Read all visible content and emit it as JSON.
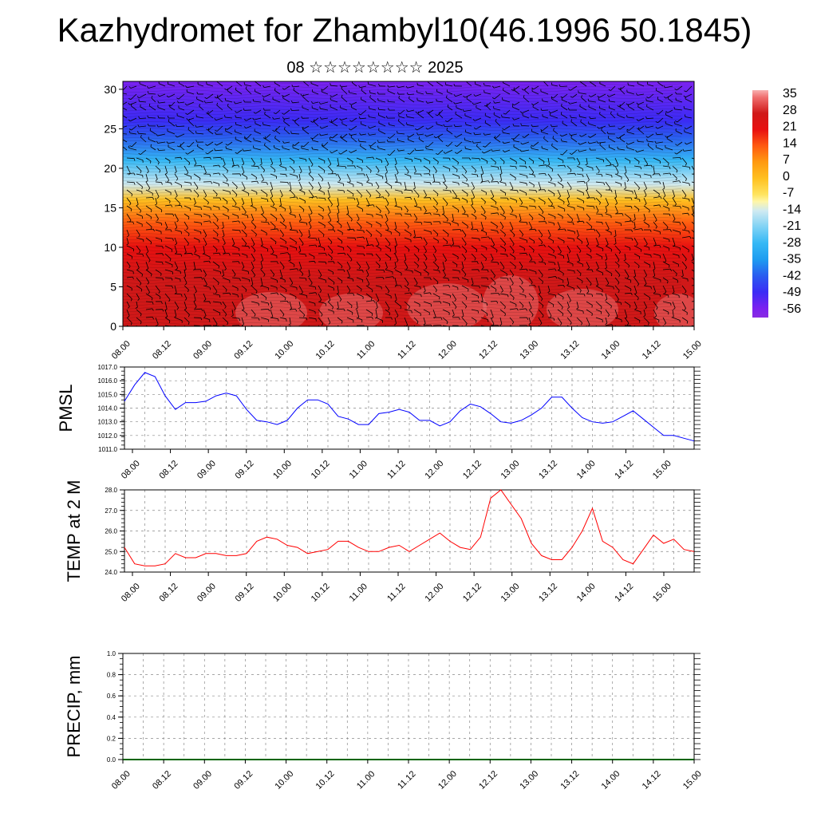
{
  "title": "Kazhydromet for Zhambyl10(46.1996 50.1845)",
  "subtitle": "08 ☆☆☆☆☆☆☆☆ 2025",
  "colors": {
    "pmsl_line": "#0000ff",
    "temp_line": "#ff0000",
    "precip_line": "#006400",
    "grid": "#888888"
  },
  "chart_data": [
    {
      "type": "heatmap",
      "name": "vertical cross-section",
      "x_ticks": [
        "08.00",
        "08.12",
        "09.00",
        "09.12",
        "10.00",
        "10.12",
        "11.00",
        "11.12",
        "12.00",
        "12.12",
        "13.00",
        "13.12",
        "14.00",
        "14.12",
        "15.00"
      ],
      "y_ticks": [
        0,
        5,
        10,
        15,
        20,
        25,
        30
      ],
      "ylim": [
        0,
        31
      ],
      "colorbar_labels": [
        "35",
        "28",
        "21",
        "14",
        "7",
        "0",
        "-7",
        "-14",
        "-21",
        "-28",
        "-35",
        "-42",
        "-49",
        "-56"
      ],
      "colorbar_range": [
        -60,
        38
      ],
      "field_profile": [
        {
          "level": 0,
          "value": 28
        },
        {
          "level": 6,
          "value": 24
        },
        {
          "level": 10,
          "value": 16
        },
        {
          "level": 13,
          "value": 8
        },
        {
          "level": 16,
          "value": -3
        },
        {
          "level": 18,
          "value": -15
        },
        {
          "level": 21,
          "value": -28
        },
        {
          "level": 24,
          "value": -42
        },
        {
          "level": 26,
          "value": -52
        },
        {
          "level": 31,
          "value": -58
        }
      ],
      "overlay": "wind barbs"
    },
    {
      "type": "line",
      "ylabel": "PMSL",
      "ylim": [
        1011.0,
        1017.0
      ],
      "y_ticks": [
        "1011.0",
        "1012.0",
        "1013.0",
        "1014.0",
        "1015.0",
        "1016.0",
        "1017.0"
      ],
      "x_ticks": [
        "08.00",
        "08.12",
        "09.00",
        "09.12",
        "10.00",
        "10.12",
        "11.00",
        "11.12",
        "12.00",
        "12.12",
        "13.00",
        "13.12",
        "14.00",
        "14.12",
        "15.00"
      ],
      "x_hours": [
        0,
        3,
        6,
        9,
        12,
        15,
        18,
        21,
        24,
        27,
        30,
        33,
        36,
        39,
        42,
        45,
        48,
        51,
        54,
        57,
        60,
        63,
        66,
        69,
        72,
        75,
        78,
        81,
        84,
        87,
        90,
        93,
        96,
        99,
        102,
        105,
        108,
        111,
        114,
        117,
        120,
        123,
        126,
        129,
        132,
        135,
        138,
        141,
        144,
        147,
        150,
        153,
        156,
        159,
        162,
        165,
        168
      ],
      "values": [
        1014.5,
        1015.7,
        1016.6,
        1016.3,
        1014.9,
        1013.9,
        1014.4,
        1014.4,
        1014.5,
        1014.9,
        1015.1,
        1014.9,
        1013.9,
        1013.1,
        1013.0,
        1012.8,
        1013.1,
        1014.0,
        1014.6,
        1014.6,
        1014.3,
        1013.4,
        1013.2,
        1012.8,
        1012.8,
        1013.6,
        1013.7,
        1013.9,
        1013.7,
        1013.1,
        1013.1,
        1012.7,
        1013.0,
        1013.8,
        1014.3,
        1014.1,
        1013.6,
        1013.0,
        1012.9,
        1013.1,
        1013.5,
        1014.0,
        1014.8,
        1014.8,
        1014.0,
        1013.3,
        1013.0,
        1012.9,
        1013.0,
        1013.4,
        1013.8,
        1013.2,
        1012.6,
        1012.0,
        1012.0,
        1011.8,
        1011.6
      ]
    },
    {
      "type": "line",
      "ylabel": "TEMP at 2 M",
      "ylim": [
        24.0,
        28.0
      ],
      "y_ticks": [
        "24.0",
        "25.0",
        "26.0",
        "27.0",
        "28.0"
      ],
      "x_ticks": [
        "08.00",
        "08.12",
        "09.00",
        "09.12",
        "10.00",
        "10.12",
        "11.00",
        "11.12",
        "12.00",
        "12.12",
        "13.00",
        "13.12",
        "14.00",
        "14.12",
        "15.00"
      ],
      "x_hours": [
        0,
        3,
        6,
        9,
        12,
        15,
        18,
        21,
        24,
        27,
        30,
        33,
        36,
        39,
        42,
        45,
        48,
        51,
        54,
        57,
        60,
        63,
        66,
        69,
        72,
        75,
        78,
        81,
        84,
        87,
        90,
        93,
        96,
        99,
        102,
        105,
        108,
        111,
        114,
        117,
        120,
        123,
        126,
        129,
        132,
        135,
        138,
        141,
        144,
        147,
        150,
        153,
        156,
        159,
        162,
        165,
        168
      ],
      "values": [
        25.2,
        24.4,
        24.3,
        24.3,
        24.4,
        24.9,
        24.7,
        24.7,
        24.9,
        24.9,
        24.8,
        24.8,
        24.9,
        25.5,
        25.7,
        25.6,
        25.3,
        25.2,
        24.9,
        25.0,
        25.1,
        25.5,
        25.5,
        25.2,
        25.0,
        25.0,
        25.2,
        25.3,
        25.0,
        25.3,
        25.6,
        25.9,
        25.5,
        25.2,
        25.1,
        25.7,
        27.6,
        28.0,
        27.3,
        26.6,
        25.4,
        24.8,
        24.6,
        24.6,
        25.2,
        26.0,
        27.1,
        25.5,
        25.2,
        24.6,
        24.4,
        25.1,
        25.8,
        25.4,
        25.6,
        25.1,
        25.0
      ]
    },
    {
      "type": "line",
      "ylabel": "PRECIP, mm",
      "ylim": [
        0.0,
        1.0
      ],
      "y_ticks": [
        "0.0",
        "0.2",
        "0.4",
        "0.6",
        "0.8",
        "1.0"
      ],
      "x_ticks": [
        "08.00",
        "08.12",
        "09.00",
        "09.12",
        "10.00",
        "10.12",
        "11.00",
        "11.12",
        "12.00",
        "12.12",
        "13.00",
        "13.12",
        "14.00",
        "14.12",
        "15.00"
      ],
      "x_hours": [
        0,
        168
      ],
      "values": [
        0.0,
        0.0
      ]
    }
  ]
}
